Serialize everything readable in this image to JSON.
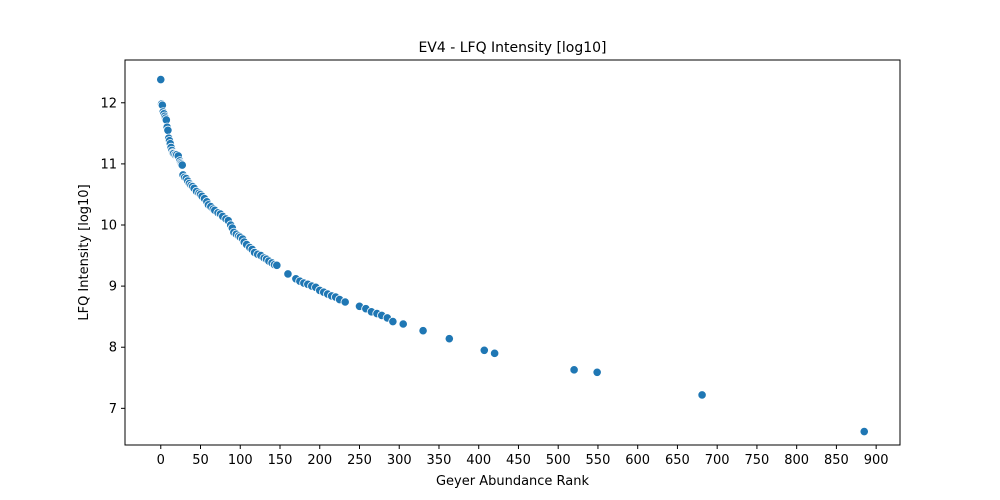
{
  "chart_data": {
    "type": "scatter",
    "title": "EV4 - LFQ Intensity [log10]",
    "xlabel": "Geyer Abundance Rank",
    "ylabel": "LFQ Intensity [log10]",
    "xlim": [
      -45,
      930
    ],
    "ylim": [
      6.4,
      12.7
    ],
    "xticks": [
      0,
      50,
      100,
      150,
      200,
      250,
      300,
      350,
      400,
      450,
      500,
      550,
      600,
      650,
      700,
      750,
      800,
      850,
      900
    ],
    "yticks": [
      7,
      8,
      9,
      10,
      11,
      12
    ],
    "grid": false,
    "marker_color": "#1f77b4",
    "points": [
      [
        0,
        12.38
      ],
      [
        1,
        11.98
      ],
      [
        2,
        11.96
      ],
      [
        3,
        11.85
      ],
      [
        4,
        11.82
      ],
      [
        5,
        11.78
      ],
      [
        6,
        11.75
      ],
      [
        7,
        11.72
      ],
      [
        8,
        11.6
      ],
      [
        9,
        11.55
      ],
      [
        10,
        11.42
      ],
      [
        11,
        11.38
      ],
      [
        12,
        11.33
      ],
      [
        13,
        11.27
      ],
      [
        14,
        11.22
      ],
      [
        15,
        11.18
      ],
      [
        16,
        11.17
      ],
      [
        18,
        11.15
      ],
      [
        20,
        11.15
      ],
      [
        22,
        11.13
      ],
      [
        24,
        11.05
      ],
      [
        25,
        11.02
      ],
      [
        26,
        11.0
      ],
      [
        27,
        10.98
      ],
      [
        28,
        10.82
      ],
      [
        30,
        10.78
      ],
      [
        32,
        10.76
      ],
      [
        34,
        10.72
      ],
      [
        36,
        10.68
      ],
      [
        38,
        10.65
      ],
      [
        40,
        10.63
      ],
      [
        42,
        10.6
      ],
      [
        45,
        10.55
      ],
      [
        48,
        10.52
      ],
      [
        50,
        10.5
      ],
      [
        52,
        10.47
      ],
      [
        55,
        10.43
      ],
      [
        58,
        10.38
      ],
      [
        60,
        10.33
      ],
      [
        63,
        10.3
      ],
      [
        66,
        10.26
      ],
      [
        68,
        10.24
      ],
      [
        72,
        10.2
      ],
      [
        75,
        10.18
      ],
      [
        78,
        10.14
      ],
      [
        82,
        10.1
      ],
      [
        85,
        10.07
      ],
      [
        88,
        10.0
      ],
      [
        90,
        9.95
      ],
      [
        92,
        9.88
      ],
      [
        95,
        9.85
      ],
      [
        98,
        9.82
      ],
      [
        100,
        9.8
      ],
      [
        103,
        9.77
      ],
      [
        105,
        9.72
      ],
      [
        108,
        9.68
      ],
      [
        112,
        9.63
      ],
      [
        115,
        9.6
      ],
      [
        118,
        9.55
      ],
      [
        122,
        9.52
      ],
      [
        126,
        9.5
      ],
      [
        130,
        9.46
      ],
      [
        133,
        9.44
      ],
      [
        136,
        9.41
      ],
      [
        140,
        9.38
      ],
      [
        143,
        9.35
      ],
      [
        146,
        9.34
      ],
      [
        160,
        9.2
      ],
      [
        170,
        9.12
      ],
      [
        175,
        9.08
      ],
      [
        180,
        9.05
      ],
      [
        185,
        9.03
      ],
      [
        190,
        9.0
      ],
      [
        195,
        8.98
      ],
      [
        200,
        8.93
      ],
      [
        205,
        8.9
      ],
      [
        210,
        8.87
      ],
      [
        215,
        8.84
      ],
      [
        220,
        8.82
      ],
      [
        225,
        8.78
      ],
      [
        232,
        8.74
      ],
      [
        250,
        8.67
      ],
      [
        258,
        8.63
      ],
      [
        265,
        8.58
      ],
      [
        272,
        8.55
      ],
      [
        278,
        8.52
      ],
      [
        285,
        8.48
      ],
      [
        292,
        8.42
      ],
      [
        305,
        8.38
      ],
      [
        330,
        8.27
      ],
      [
        363,
        8.14
      ],
      [
        407,
        7.95
      ],
      [
        420,
        7.9
      ],
      [
        520,
        7.63
      ],
      [
        549,
        7.59
      ],
      [
        681,
        7.22
      ],
      [
        885,
        6.62
      ]
    ]
  }
}
